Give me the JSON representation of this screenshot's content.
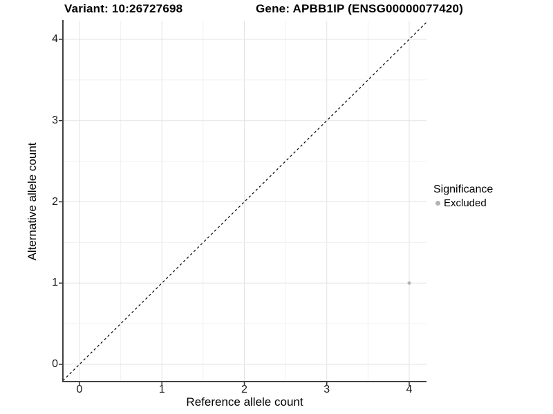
{
  "titles": {
    "variant": "Variant: 10:26727698",
    "gene": "Gene: APBB1IP (ENSG00000077420)"
  },
  "chart_data": {
    "type": "scatter",
    "title_left": "Variant: 10:26727698",
    "title_right": "Gene: APBB1IP (ENSG00000077420)",
    "xlabel": "Reference allele count",
    "ylabel": "Alternative allele count",
    "xlim": [
      -0.2,
      4.21
    ],
    "ylim": [
      -0.21,
      4.23
    ],
    "x_ticks": [
      0,
      1,
      2,
      3,
      4
    ],
    "y_ticks": [
      0,
      1,
      2,
      3,
      4
    ],
    "grid": true,
    "minor_grid_step": 0.5,
    "series": [
      {
        "name": "Excluded",
        "color": "#b3b3b3",
        "points": [
          {
            "x": 4,
            "y": 1
          }
        ]
      }
    ],
    "abline": {
      "slope": 1,
      "intercept": 0,
      "style": "dashed",
      "color": "#000000"
    },
    "legend": {
      "title": "Significance",
      "position": "right",
      "items": [
        {
          "label": "Excluded",
          "color": "#b3b3b3"
        }
      ]
    }
  },
  "colors": {
    "axis_line": "#404040",
    "tick_mark": "#333333",
    "grid_major": "#e3e3e3",
    "grid_minor": "#f0f0f0",
    "point": "#b3b3b3"
  }
}
